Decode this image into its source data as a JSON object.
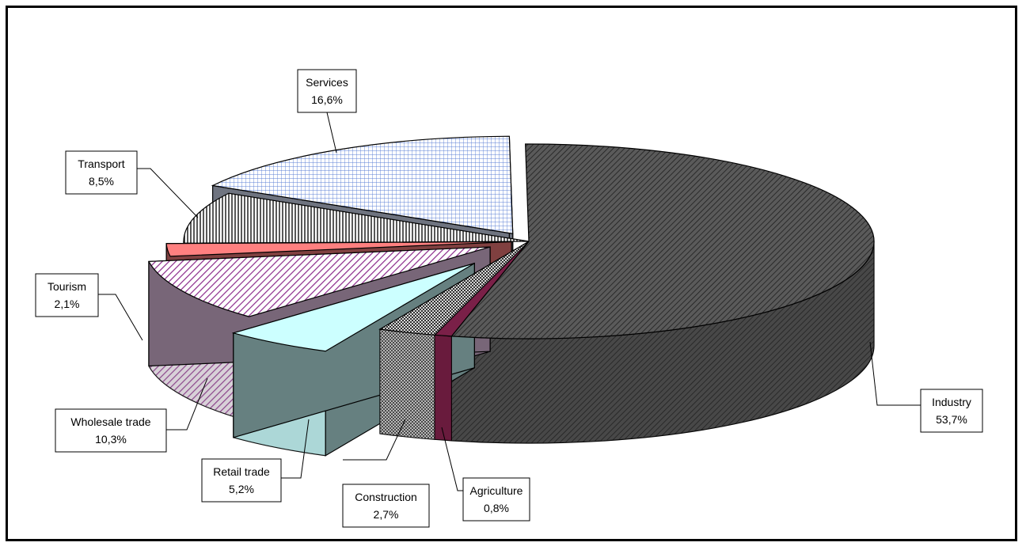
{
  "chart_data": {
    "type": "pie",
    "title": "",
    "slices": [
      {
        "name": "Industry",
        "value": 53.7,
        "text": "53,7%",
        "color": "#4a4a4a"
      },
      {
        "name": "Agriculture",
        "value": 0.8,
        "text": "0,8%",
        "color": "#6b1d3d"
      },
      {
        "name": "Construction",
        "value": 2.7,
        "text": "2,7%",
        "color": "#bdbdbd"
      },
      {
        "name": "Retail trade",
        "value": 5.2,
        "text": "5,2%",
        "color": "#ccffff"
      },
      {
        "name": "Wholesale trade",
        "value": 10.3,
        "text": "10,3%",
        "color": "#f0ccf0"
      },
      {
        "name": "Tourism",
        "value": 2.1,
        "text": "2,1%",
        "color": "#ff8080"
      },
      {
        "name": "Transport",
        "value": 8.5,
        "text": "8,5%",
        "color": "#e6e6e6"
      },
      {
        "name": "Services",
        "value": 16.6,
        "text": "16,6%",
        "color": "#dde8ff"
      }
    ],
    "legend": "none"
  }
}
